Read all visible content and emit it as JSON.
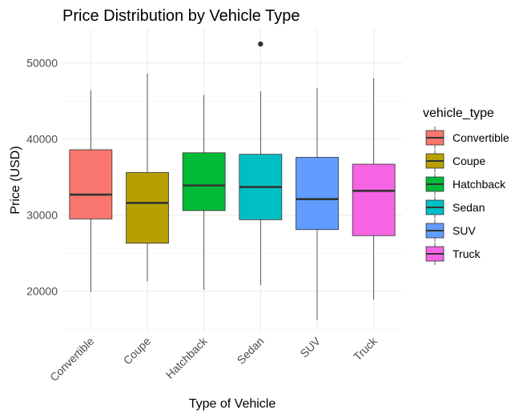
{
  "chart_data": {
    "type": "boxplot",
    "title": "Price Distribution by Vehicle Type",
    "xlabel": "Type of Vehicle",
    "ylabel": "Price (USD)",
    "ylim": [
      14800,
      54500
    ],
    "yticks": [
      20000,
      30000,
      40000,
      50000
    ],
    "ytick_labels": [
      "20000",
      "30000",
      "40000",
      "50000"
    ],
    "categories": [
      "Convertible",
      "Coupe",
      "Hatchback",
      "Sedan",
      "SUV",
      "Truck"
    ],
    "grid": true,
    "legend": {
      "title": "vehicle_type",
      "position": "right",
      "entries": [
        "Convertible",
        "Coupe",
        "Hatchback",
        "Sedan",
        "SUV",
        "Truck"
      ]
    },
    "colors": [
      "#F8766D",
      "#B79F00",
      "#00BA38",
      "#00BFC4",
      "#619CFF",
      "#F564E3"
    ],
    "boxes": [
      {
        "name": "Convertible",
        "whisker_low": 19900,
        "q1": 29500,
        "median": 32700,
        "q3": 38600,
        "whisker_high": 46400,
        "outliers": []
      },
      {
        "name": "Coupe",
        "whisker_low": 21300,
        "q1": 26300,
        "median": 31600,
        "q3": 35600,
        "whisker_high": 48600,
        "outliers": []
      },
      {
        "name": "Hatchback",
        "whisker_low": 20200,
        "q1": 30600,
        "median": 33900,
        "q3": 38200,
        "whisker_high": 45800,
        "outliers": []
      },
      {
        "name": "Sedan",
        "whisker_low": 20800,
        "q1": 29400,
        "median": 33700,
        "q3": 38000,
        "whisker_high": 46300,
        "outliers": [
          52500
        ]
      },
      {
        "name": "SUV",
        "whisker_low": 16200,
        "q1": 28100,
        "median": 32100,
        "q3": 37600,
        "whisker_high": 46700,
        "outliers": []
      },
      {
        "name": "Truck",
        "whisker_low": 18900,
        "q1": 27300,
        "median": 33200,
        "q3": 36700,
        "whisker_high": 48000,
        "outliers": []
      }
    ]
  }
}
